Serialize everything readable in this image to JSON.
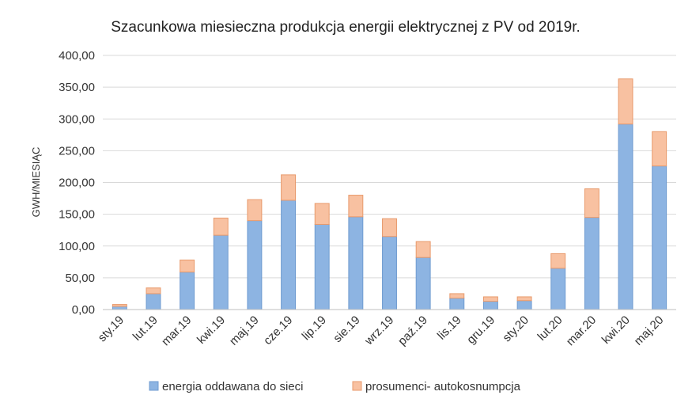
{
  "chart_data": {
    "type": "bar",
    "stacked": true,
    "title": "Szacunkowa miesieczna  produkcja energii elektrycznej z PV od 2019r.",
    "xlabel": "",
    "ylabel": "GWH/MIESIĄC",
    "ylim": [
      0,
      400
    ],
    "yticks": [
      "0,00",
      "50,00",
      "100,00",
      "150,00",
      "200,00",
      "250,00",
      "300,00",
      "350,00",
      "400,00"
    ],
    "grid": true,
    "legend_position": "bottom",
    "categories": [
      "sty.19",
      "lut.19",
      "mar.19",
      "kwi.19",
      "maj.19",
      "cze.19",
      "lip.19",
      "sie.19",
      "wrz.19",
      "paź.19",
      "lis.19",
      "gru.19",
      "sty.20",
      "lut.20",
      "mar.20",
      "kwi.20",
      "maj.20"
    ],
    "series": [
      {
        "name": "energia oddawana do sieci",
        "color": "#8db4e2",
        "stroke": "#6f9bd0",
        "values": [
          5,
          25,
          59,
          117,
          140,
          172,
          134,
          146,
          115,
          82,
          18,
          13,
          14,
          65,
          145,
          292,
          226
        ]
      },
      {
        "name": "prosumenci- autokosnumpcja",
        "color": "#f8c1a1",
        "stroke": "#e89a6c",
        "values": [
          3,
          9,
          19,
          27,
          33,
          40,
          33,
          34,
          28,
          25,
          7,
          7,
          6,
          23,
          45,
          71,
          54
        ]
      }
    ]
  }
}
